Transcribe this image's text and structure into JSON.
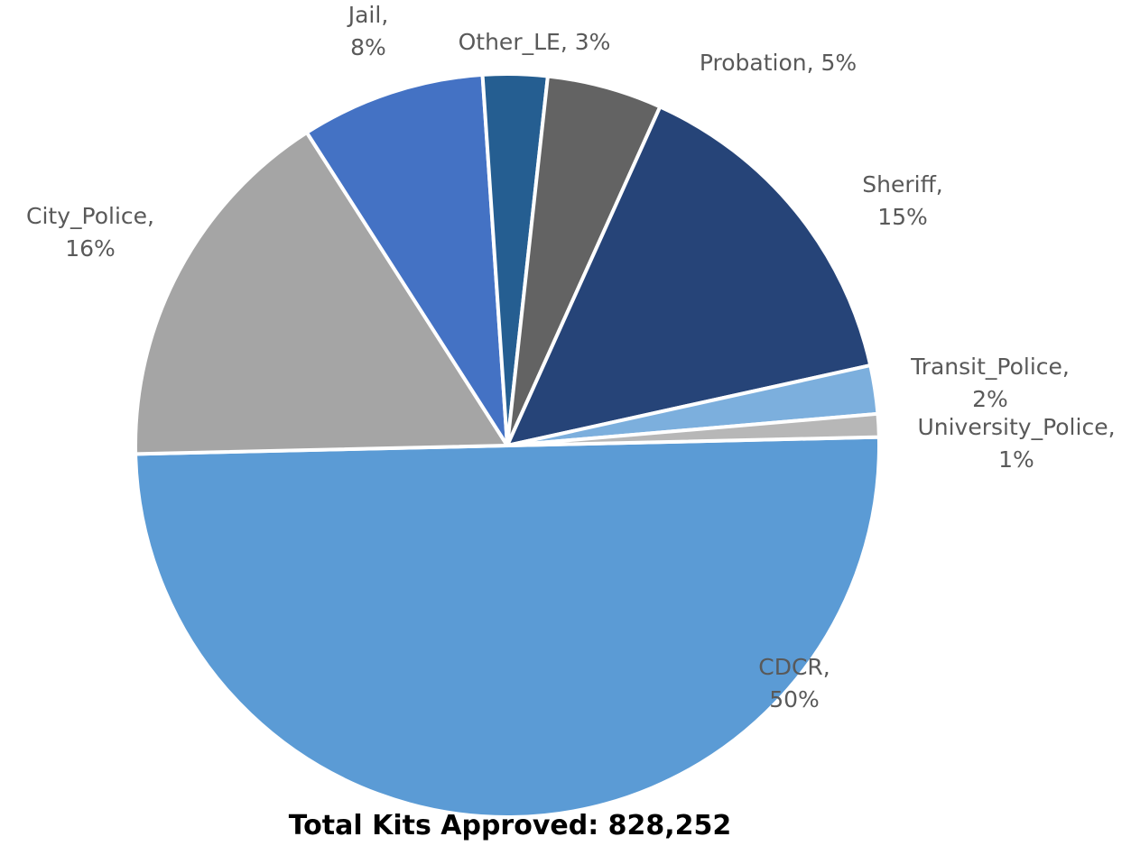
{
  "chart_data": {
    "type": "pie",
    "title": "Total Kits Approved: 828,252",
    "slices": [
      {
        "name": "CDCR",
        "percent_label": "50%",
        "value": 50,
        "color": "#5B9BD5",
        "label_lines": [
          "CDCR,",
          "50%"
        ]
      },
      {
        "name": "City_Police",
        "percent_label": "16%",
        "value": 16.3,
        "color": "#A5A5A5",
        "label_lines": [
          "City_Police,",
          "16%"
        ]
      },
      {
        "name": "Jail",
        "percent_label": "8%",
        "value": 8,
        "color": "#4472C4",
        "label_lines": [
          "Jail,",
          "8%"
        ]
      },
      {
        "name": "Other_LE",
        "percent_label": "3%",
        "value": 2.8,
        "color": "#255E91",
        "label_lines": [
          "Other_LE, 3%"
        ]
      },
      {
        "name": "Probation",
        "percent_label": "5%",
        "value": 5,
        "color": "#636363",
        "label_lines": [
          "Probation, 5%"
        ]
      },
      {
        "name": "Sheriff",
        "percent_label": "15%",
        "value": 14.8,
        "color": "#264478",
        "label_lines": [
          "Sheriff,",
          "15%"
        ]
      },
      {
        "name": "Transit_Police",
        "percent_label": "2%",
        "value": 2.1,
        "color": "#7CAFDD",
        "label_lines": [
          "Transit_Police,",
          "2%"
        ]
      },
      {
        "name": "University_Police",
        "percent_label": "1%",
        "value": 1,
        "color": "#B7B7B7",
        "label_lines": [
          "University_Police,",
          "1%"
        ]
      }
    ],
    "legend": "none",
    "start_angle": "3 o'clock, counterclockwise order from CDCR at bottom"
  }
}
